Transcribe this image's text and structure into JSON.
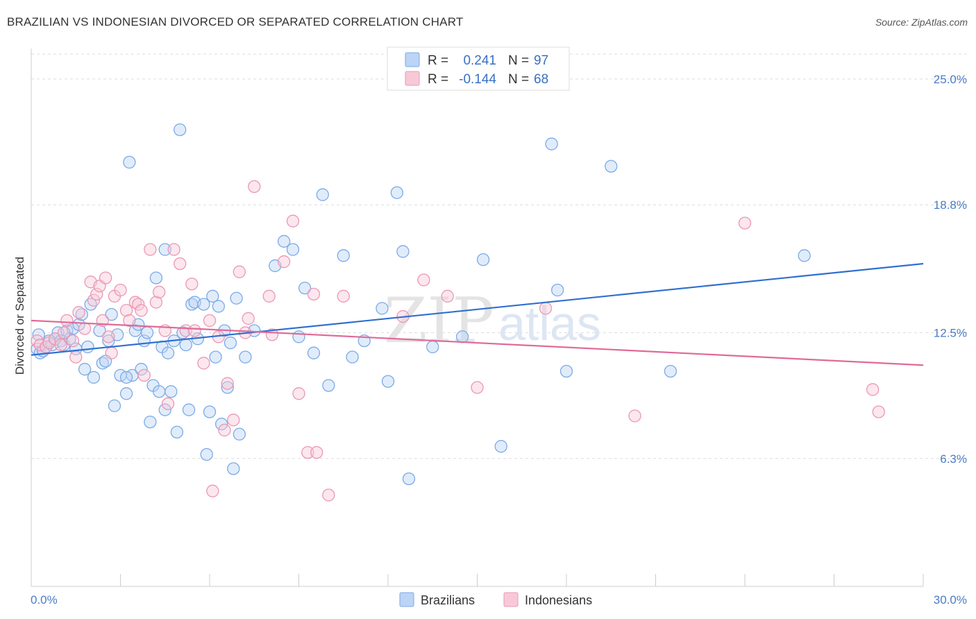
{
  "title": "BRAZILIAN VS INDONESIAN DIVORCED OR SEPARATED CORRELATION CHART",
  "source": "Source: ZipAtlas.com",
  "watermark": {
    "zip": "ZIP",
    "atlas": "atlas"
  },
  "chart_data": {
    "type": "scatter",
    "ylabel": "Divorced or Separated",
    "xlim": [
      0,
      30
    ],
    "ylim": [
      0,
      26.5
    ],
    "x_tick_labels": [
      {
        "value": 0,
        "label": "0.0%"
      },
      {
        "value": 30,
        "label": "30.0%"
      }
    ],
    "y_tick_labels": [
      {
        "value": 6.3,
        "label": "6.3%"
      },
      {
        "value": 12.5,
        "label": "12.5%"
      },
      {
        "value": 18.8,
        "label": "18.8%"
      },
      {
        "value": 25.0,
        "label": "25.0%"
      }
    ],
    "grid": "horizontal dashed",
    "legend": {
      "placement": "top-center",
      "rows": [
        {
          "r_label": "R =",
          "r_value": "0.241",
          "n_label": "N =",
          "n_value": "97"
        },
        {
          "r_label": "R =",
          "r_value": "-0.144",
          "n_label": "N =",
          "n_value": "68"
        }
      ]
    },
    "series": [
      {
        "name": "Brazilians",
        "color": "#7aaae8",
        "fill": "#bcd4f5",
        "trend": {
          "x0": 0,
          "y0": 11.4,
          "x1": 30,
          "y1": 15.9,
          "color": "#2f6fd0"
        },
        "points": [
          [
            0.2,
            11.7
          ],
          [
            0.3,
            11.5
          ],
          [
            0.4,
            11.6
          ],
          [
            0.5,
            11.8
          ],
          [
            0.6,
            12.1
          ],
          [
            0.7,
            11.9
          ],
          [
            0.8,
            12.2
          ],
          [
            0.9,
            12.5
          ],
          [
            1.0,
            12.1
          ],
          [
            1.1,
            11.9
          ],
          [
            1.2,
            12.6
          ],
          [
            1.3,
            12.2
          ],
          [
            1.4,
            12.7
          ],
          [
            1.5,
            11.7
          ],
          [
            1.6,
            12.9
          ],
          [
            1.7,
            13.4
          ],
          [
            1.8,
            10.7
          ],
          [
            1.9,
            11.8
          ],
          [
            2.0,
            13.9
          ],
          [
            2.1,
            10.3
          ],
          [
            2.3,
            12.6
          ],
          [
            2.4,
            11.0
          ],
          [
            2.5,
            11.1
          ],
          [
            2.6,
            12.1
          ],
          [
            2.7,
            13.4
          ],
          [
            2.8,
            8.9
          ],
          [
            2.9,
            12.4
          ],
          [
            3.0,
            10.4
          ],
          [
            3.2,
            9.5
          ],
          [
            3.3,
            20.9
          ],
          [
            3.4,
            10.4
          ],
          [
            3.5,
            12.6
          ],
          [
            3.6,
            12.9
          ],
          [
            3.7,
            10.7
          ],
          [
            3.8,
            12.1
          ],
          [
            3.9,
            12.5
          ],
          [
            4.0,
            8.1
          ],
          [
            4.1,
            9.9
          ],
          [
            4.2,
            15.2
          ],
          [
            4.3,
            9.6
          ],
          [
            4.4,
            11.8
          ],
          [
            4.5,
            8.7
          ],
          [
            4.6,
            11.5
          ],
          [
            4.7,
            9.6
          ],
          [
            4.8,
            12.1
          ],
          [
            4.9,
            7.6
          ],
          [
            5.0,
            22.5
          ],
          [
            5.1,
            12.5
          ],
          [
            5.2,
            11.9
          ],
          [
            5.3,
            8.7
          ],
          [
            5.4,
            13.9
          ],
          [
            5.5,
            14.0
          ],
          [
            5.6,
            12.2
          ],
          [
            5.8,
            13.9
          ],
          [
            5.9,
            6.5
          ],
          [
            6.0,
            8.6
          ],
          [
            6.1,
            14.3
          ],
          [
            6.2,
            11.3
          ],
          [
            6.3,
            13.8
          ],
          [
            6.5,
            12.6
          ],
          [
            6.6,
            9.8
          ],
          [
            6.7,
            12.0
          ],
          [
            6.8,
            5.8
          ],
          [
            6.9,
            14.2
          ],
          [
            7.0,
            7.5
          ],
          [
            7.2,
            11.3
          ],
          [
            7.5,
            12.6
          ],
          [
            8.2,
            15.8
          ],
          [
            8.5,
            17.0
          ],
          [
            8.8,
            16.6
          ],
          [
            9.0,
            12.3
          ],
          [
            9.2,
            14.7
          ],
          [
            9.5,
            11.5
          ],
          [
            9.8,
            19.3
          ],
          [
            10.0,
            9.9
          ],
          [
            10.5,
            16.3
          ],
          [
            10.8,
            11.3
          ],
          [
            11.2,
            12.1
          ],
          [
            11.8,
            13.7
          ],
          [
            12.0,
            10.1
          ],
          [
            12.3,
            19.4
          ],
          [
            12.5,
            16.5
          ],
          [
            12.7,
            5.3
          ],
          [
            13.5,
            11.8
          ],
          [
            14.5,
            12.3
          ],
          [
            15.2,
            16.1
          ],
          [
            15.8,
            6.9
          ],
          [
            17.5,
            21.8
          ],
          [
            17.7,
            14.6
          ],
          [
            18.0,
            10.6
          ],
          [
            19.5,
            20.7
          ],
          [
            21.5,
            10.6
          ],
          [
            26.0,
            16.3
          ],
          [
            0.25,
            12.4
          ],
          [
            3.2,
            10.3
          ],
          [
            6.4,
            8.0
          ],
          [
            4.5,
            16.6
          ]
        ]
      },
      {
        "name": "Indonesians",
        "color": "#eb97b4",
        "fill": "#f7c9d8",
        "trend": {
          "x0": 0,
          "y0": 13.1,
          "x1": 30,
          "y1": 10.9,
          "color": "#e06a98"
        },
        "points": [
          [
            0.2,
            12.1
          ],
          [
            0.3,
            11.9
          ],
          [
            0.5,
            11.8
          ],
          [
            0.6,
            12.0
          ],
          [
            0.8,
            12.2
          ],
          [
            1.0,
            11.9
          ],
          [
            1.1,
            12.5
          ],
          [
            1.2,
            13.1
          ],
          [
            1.4,
            12.1
          ],
          [
            1.5,
            11.3
          ],
          [
            1.6,
            13.5
          ],
          [
            1.8,
            12.7
          ],
          [
            2.0,
            15.0
          ],
          [
            2.1,
            14.1
          ],
          [
            2.2,
            14.4
          ],
          [
            2.3,
            14.8
          ],
          [
            2.4,
            13.1
          ],
          [
            2.5,
            15.2
          ],
          [
            2.6,
            12.3
          ],
          [
            2.7,
            11.5
          ],
          [
            2.8,
            14.3
          ],
          [
            3.0,
            14.6
          ],
          [
            3.2,
            13.6
          ],
          [
            3.3,
            13.1
          ],
          [
            3.5,
            14.0
          ],
          [
            3.6,
            13.9
          ],
          [
            3.7,
            13.6
          ],
          [
            3.8,
            10.4
          ],
          [
            4.0,
            16.6
          ],
          [
            4.2,
            14.0
          ],
          [
            4.3,
            14.5
          ],
          [
            4.5,
            12.6
          ],
          [
            4.6,
            9.0
          ],
          [
            4.8,
            16.6
          ],
          [
            5.0,
            15.9
          ],
          [
            5.2,
            12.6
          ],
          [
            5.4,
            14.9
          ],
          [
            5.5,
            12.6
          ],
          [
            5.8,
            11.0
          ],
          [
            6.0,
            13.1
          ],
          [
            6.1,
            4.7
          ],
          [
            6.3,
            12.3
          ],
          [
            6.5,
            7.7
          ],
          [
            6.6,
            10.0
          ],
          [
            6.8,
            8.2
          ],
          [
            7.0,
            15.5
          ],
          [
            7.2,
            12.5
          ],
          [
            7.3,
            13.2
          ],
          [
            7.5,
            19.7
          ],
          [
            8.0,
            14.3
          ],
          [
            8.1,
            12.4
          ],
          [
            8.5,
            16.0
          ],
          [
            8.8,
            18.0
          ],
          [
            9.0,
            9.5
          ],
          [
            9.3,
            6.6
          ],
          [
            9.5,
            14.4
          ],
          [
            10.0,
            4.5
          ],
          [
            10.5,
            14.3
          ],
          [
            12.5,
            13.3
          ],
          [
            13.2,
            15.1
          ],
          [
            14.0,
            14.3
          ],
          [
            15.0,
            9.8
          ],
          [
            17.3,
            13.7
          ],
          [
            20.3,
            8.4
          ],
          [
            24.0,
            17.9
          ],
          [
            28.3,
            9.7
          ],
          [
            28.5,
            8.6
          ],
          [
            9.6,
            6.6
          ]
        ]
      }
    ]
  }
}
